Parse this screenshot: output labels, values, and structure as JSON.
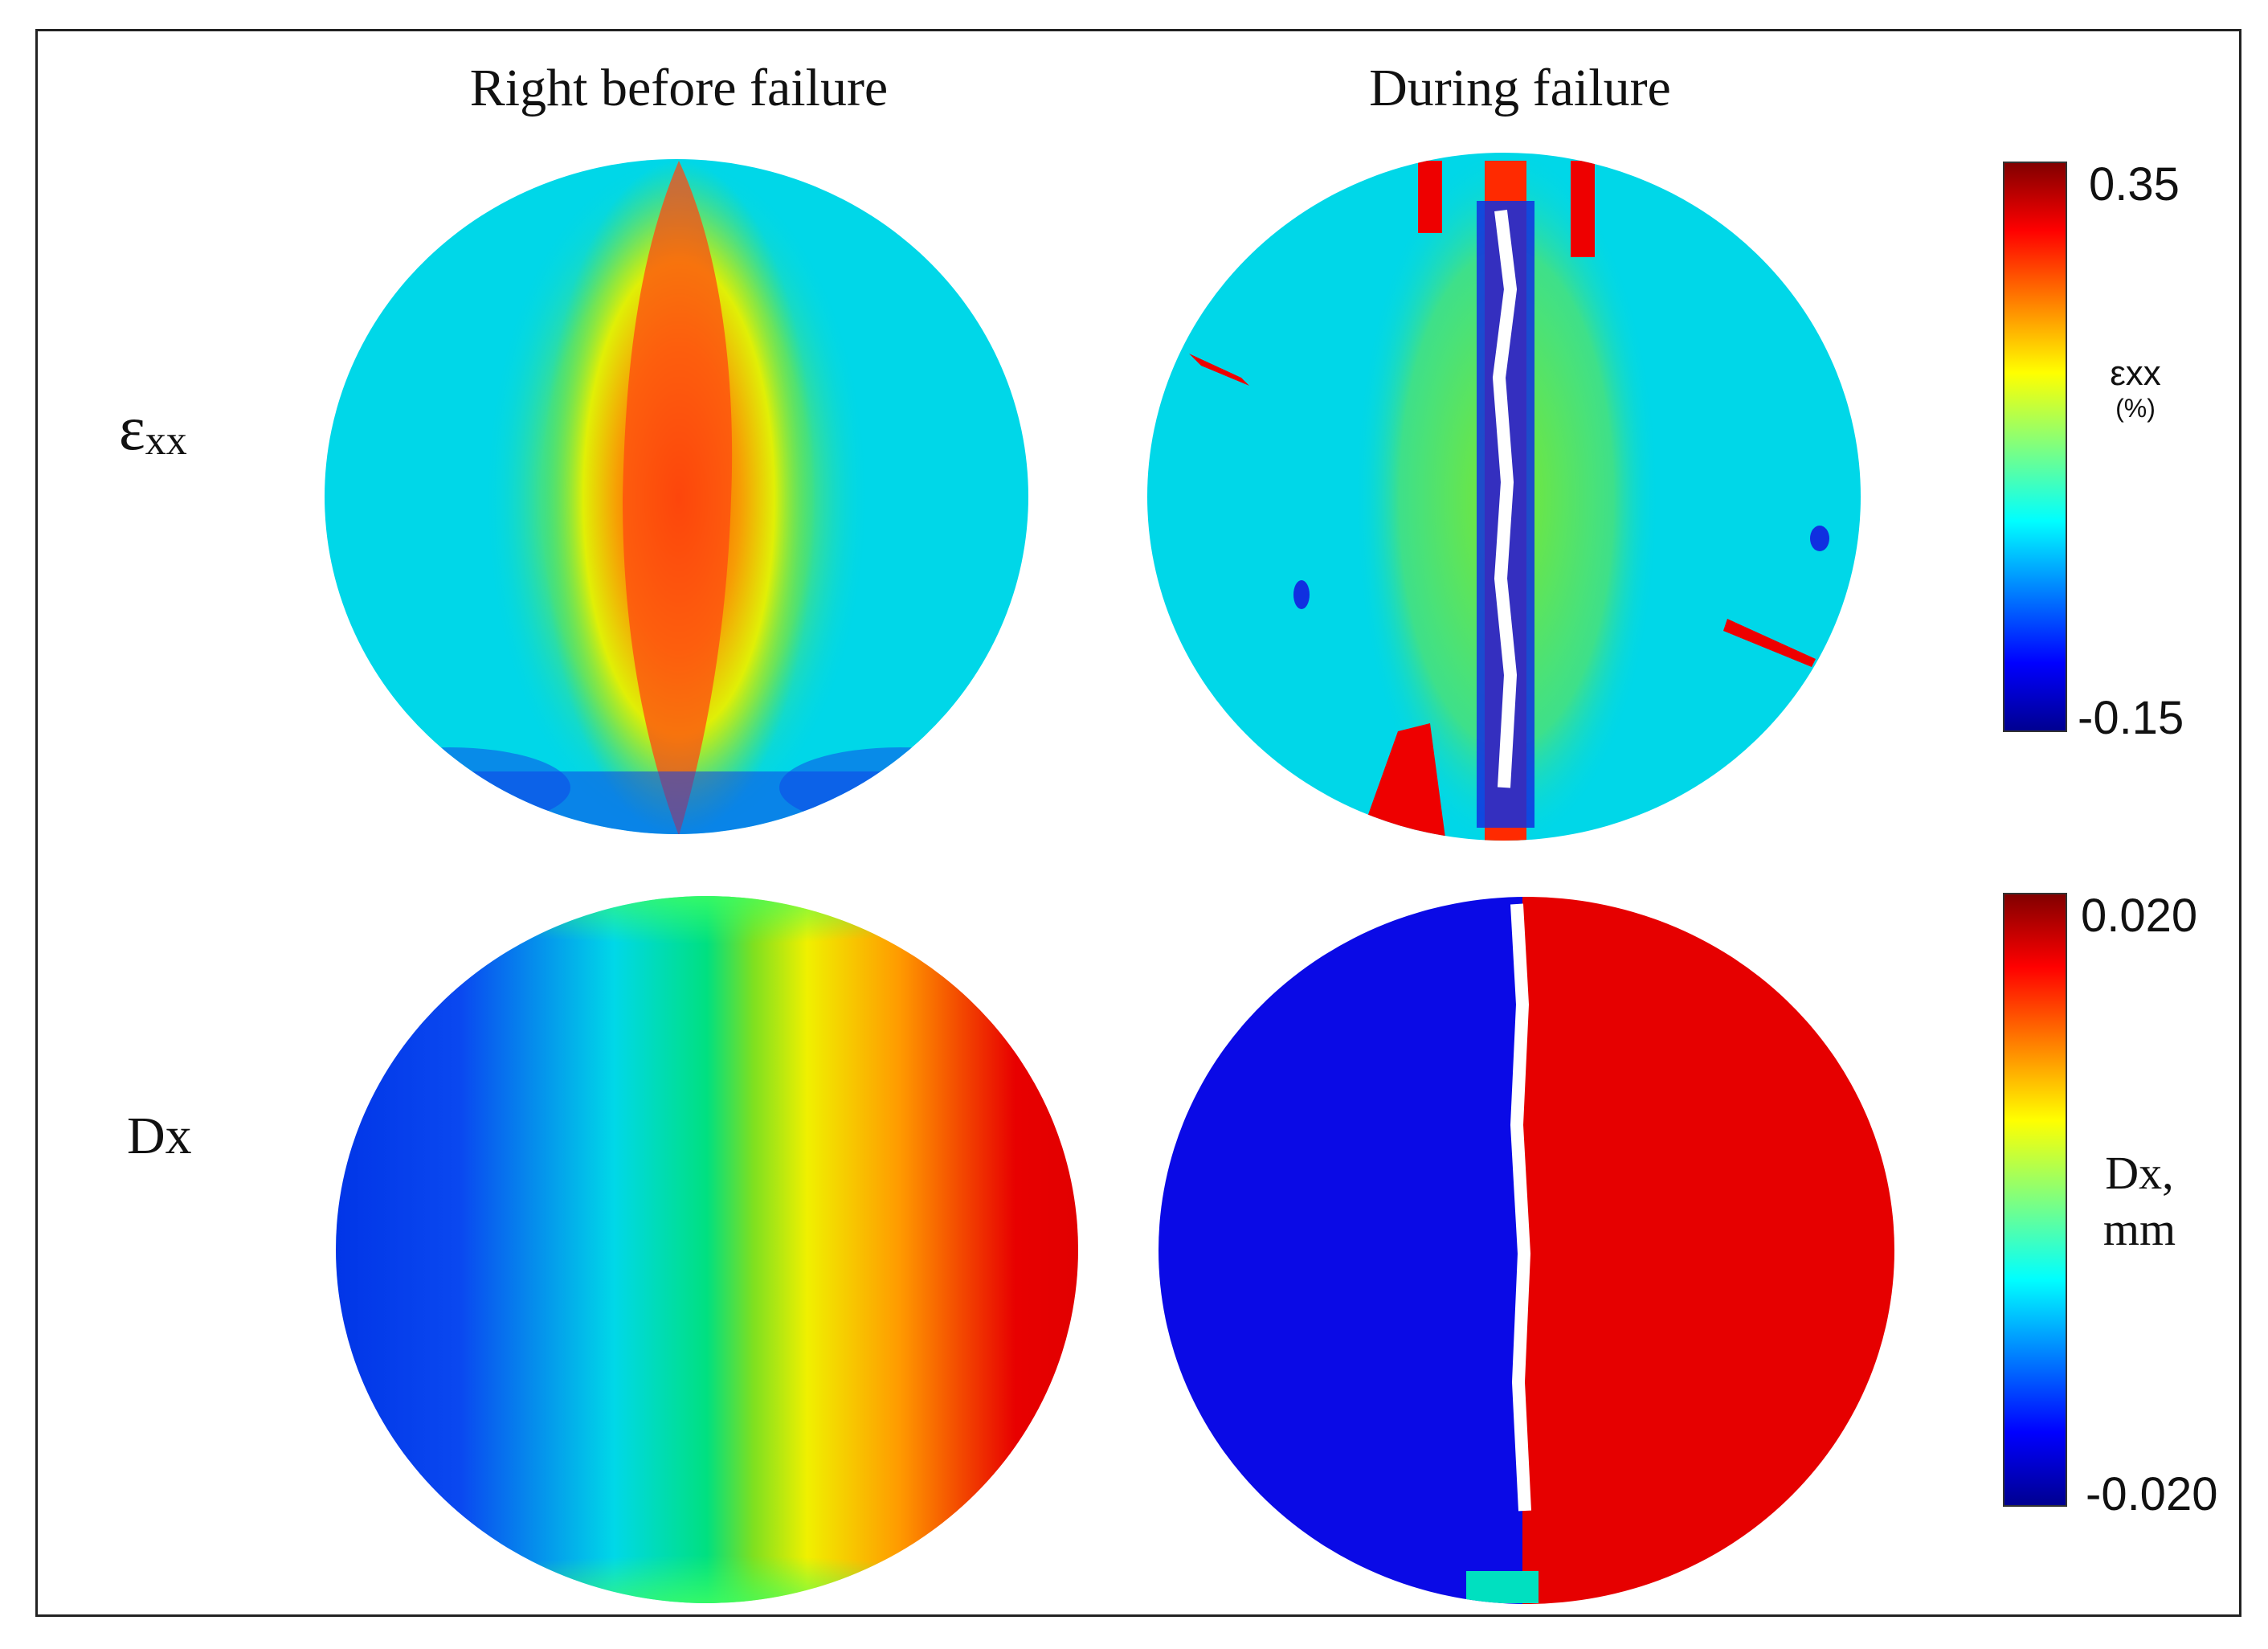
{
  "columns": [
    "Right before failure",
    "During failure"
  ],
  "rows": [
    {
      "label_base": "ε",
      "label_sub": "xx"
    },
    {
      "label_base": "Dx",
      "label_sub": ""
    }
  ],
  "colorbars": [
    {
      "max_label": "0.35",
      "min_label": "-0.15",
      "title_line1": "εxx",
      "title_line2": "(%)"
    },
    {
      "max_label": "0.020",
      "min_label": "-0.020",
      "title_line1": "Dx,",
      "title_line2": "mm"
    }
  ],
  "colors": {
    "jet_dark_blue": "#00008f",
    "jet_blue": "#0000ff",
    "jet_cyan": "#00ffff",
    "jet_green": "#00ff00",
    "jet_yellow": "#ffff00",
    "jet_red": "#ff0000",
    "jet_dark_red": "#800000",
    "field_background": "#00d7e8",
    "crack": "#ffffff"
  }
}
